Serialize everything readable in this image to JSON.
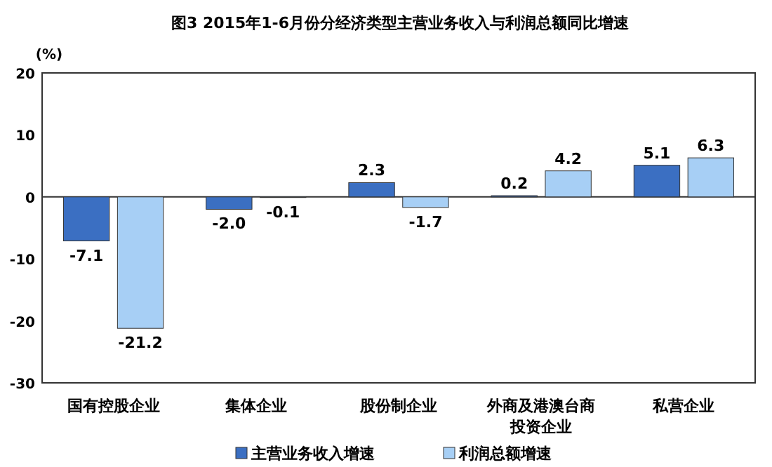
{
  "chart_data": {
    "type": "bar",
    "title": "图3  2015年1-6月份分经济类型主营业务收入与利润总额同比增速",
    "ylabel": "(%)",
    "categories": [
      "国有控股企业",
      "集体企业",
      "股份制企业",
      "外商及港澳台商投资企业",
      "私营企业"
    ],
    "series": [
      {
        "name": "主营业务收入增速",
        "color": "#3b6fc2",
        "values": [
          -7.1,
          -2.0,
          2.3,
          0.2,
          5.1
        ],
        "value_labels": [
          "-7.1",
          "-2.0",
          "2.3",
          "0.2",
          "5.1"
        ]
      },
      {
        "name": "利润总额增速",
        "color": "#a7cff5",
        "values": [
          -21.2,
          -0.1,
          -1.7,
          4.2,
          6.3
        ],
        "value_labels": [
          "-21.2",
          "-0.1",
          "-1.7",
          "4.2",
          "6.3"
        ]
      }
    ],
    "ylim": [
      -30,
      20
    ],
    "yticks": [
      -30,
      -20,
      -10,
      0,
      10,
      20
    ],
    "legend": "bottom"
  }
}
